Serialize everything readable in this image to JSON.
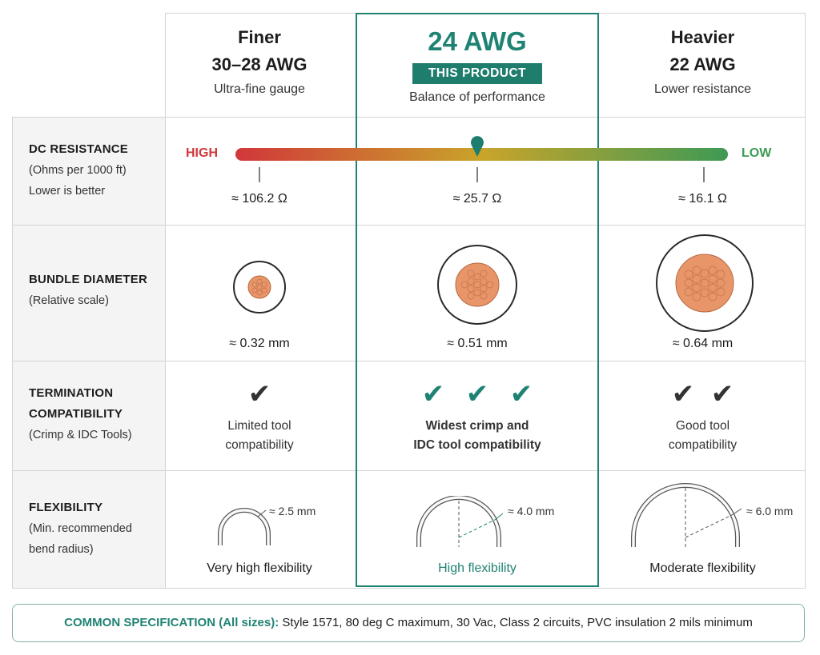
{
  "columns": [
    {
      "title": "Finer",
      "gauge": "30–28 AWG",
      "subtitle": "Ultra-fine gauge"
    },
    {
      "gauge": "24 AWG",
      "badge": "THIS PRODUCT",
      "subtitle": "Balance of performance"
    },
    {
      "title": "Heavier",
      "gauge": "22 AWG",
      "subtitle": "Lower resistance"
    }
  ],
  "rows": {
    "resistance": {
      "title": "DC RESISTANCE",
      "sub1": "(Ohms per 1000 ft)",
      "sub2": "Lower is better",
      "high_label": "HIGH",
      "low_label": "LOW",
      "values": [
        "≈ 106.2 Ω",
        "≈ 25.7 Ω",
        "≈ 16.1 Ω"
      ],
      "colors": {
        "high": "#d1373a",
        "mid": "#c9a42a",
        "low": "#3e9a55"
      }
    },
    "diameter": {
      "title": "BUNDLE DIAMETER",
      "sub1": "(Relative scale)",
      "values": [
        "≈ 0.32 mm",
        "≈ 0.51 mm",
        "≈ 0.64 mm"
      ]
    },
    "termination": {
      "title1": "TERMINATION",
      "title2": "COMPATIBILITY",
      "sub1": "(Crimp & IDC Tools)",
      "checks": [
        1,
        3,
        2
      ],
      "notes": [
        [
          "Limited tool",
          "compatibility"
        ],
        [
          "Widest crimp and",
          "IDC tool compatibility"
        ],
        [
          "Good tool",
          "compatibility"
        ]
      ]
    },
    "flexibility": {
      "title": "FLEXIBILITY",
      "sub1": "(Min. recommended",
      "sub2": "bend radius)",
      "radii": [
        "≈ 2.5 mm",
        "≈ 4.0 mm",
        "≈ 6.0 mm"
      ],
      "notes": [
        "Very high flexibility",
        "High flexibility",
        "Moderate flexibility"
      ]
    }
  },
  "common_spec": {
    "label": "COMMON SPECIFICATION (All sizes):",
    "text": " Style 1571, 80 deg C maximum, 30 Vac, Class 2 circuits, PVC insulation 2 mils minimum"
  },
  "accent_color": "#1f8373"
}
